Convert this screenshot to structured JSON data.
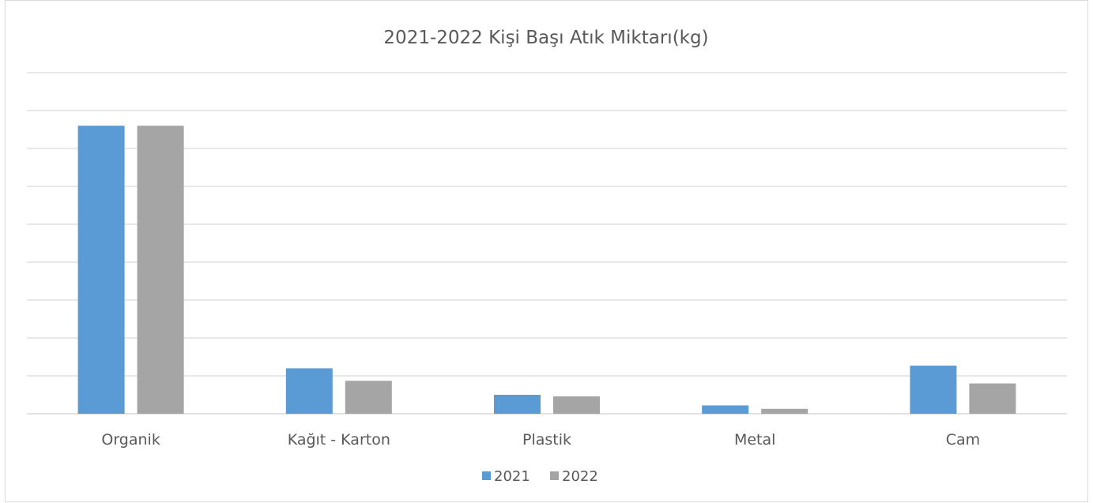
{
  "chart_data": {
    "type": "bar",
    "title": "2021-2022 Kişi Başı Atık Miktarı(kg)",
    "xlabel": "",
    "ylabel": "",
    "categories": [
      "Organik",
      "Kağıt - Karton",
      "Plastik",
      "Metal",
      "Cam"
    ],
    "series": [
      {
        "name": "2021",
        "color": "#5b9bd5",
        "values": [
          7.6,
          1.2,
          0.5,
          0.22,
          1.27
        ]
      },
      {
        "name": "2022",
        "color": "#a5a5a5",
        "values": [
          7.6,
          0.87,
          0.46,
          0.13,
          0.8
        ]
      }
    ],
    "ylim": [
      0,
      9
    ],
    "y_gridlines": 9,
    "grid": true,
    "y_tick_labels_visible": false,
    "legend_position": "bottom"
  }
}
